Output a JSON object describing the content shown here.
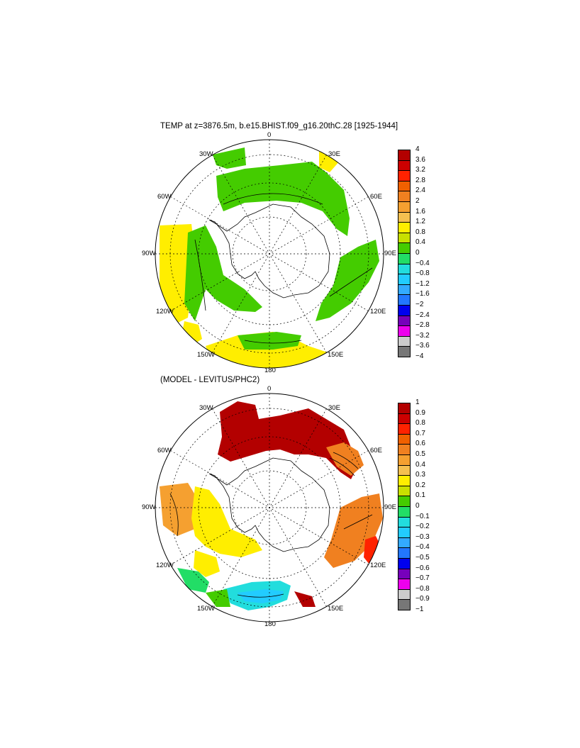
{
  "panel1": {
    "title": "TEMP at z=3876.5m, b.e15.BHIST.f09_g16.20thC.28 [1925-1944]",
    "lon_labels": {
      "top": "0",
      "tr": "30E",
      "rt": "60E",
      "right": "90E",
      "rb": "120E",
      "br": "150E",
      "bottom": "180",
      "bl": "150W",
      "lb": "120W",
      "left": "90W",
      "lt": "60W",
      "tl": "30W"
    },
    "colorbar": {
      "labels": [
        "4",
        "3.6",
        "3.2",
        "2.8",
        "2.4",
        "2",
        "1.6",
        "1.2",
        "0.8",
        "0.4",
        "0",
        "−0.4",
        "−0.8",
        "−1.2",
        "−1.6",
        "−2",
        "−2.4",
        "−2.8",
        "−3.2",
        "−3.6",
        "−4"
      ],
      "colors": [
        "#b30000",
        "#cc0000",
        "#ff2200",
        "#f06000",
        "#f08020",
        "#f5a030",
        "#f5c050",
        "#ffee00",
        "#c8e000",
        "#44cc00",
        "#22dd66",
        "#22dddd",
        "#22ccff",
        "#33aaff",
        "#2277ff",
        "#0000ee",
        "#7700bb",
        "#ee00ee",
        "#cccccc",
        "#777777"
      ]
    }
  },
  "panel2": {
    "title": "(MODEL - LEVITUS/PHC2)",
    "lon_labels": {
      "top": "0",
      "tr": "30E",
      "rt": "60E",
      "right": "90E",
      "rb": "120E",
      "br": "150E",
      "bottom": "180",
      "bl": "150W",
      "lb": "120W",
      "left": "90W",
      "lt": "60W",
      "tl": "30W"
    },
    "colorbar": {
      "labels": [
        "1",
        "0.9",
        "0.8",
        "0.7",
        "0.6",
        "0.5",
        "0.4",
        "0.3",
        "0.2",
        "0.1",
        "0",
        "−0.1",
        "−0.2",
        "−0.3",
        "−0.4",
        "−0.5",
        "−0.6",
        "−0.7",
        "−0.8",
        "−0.9",
        "−1"
      ],
      "colors": [
        "#b30000",
        "#cc0000",
        "#ff2200",
        "#f06000",
        "#f08020",
        "#f5a030",
        "#f5c050",
        "#ffee00",
        "#c8e000",
        "#44cc00",
        "#22dd66",
        "#22dddd",
        "#22ccff",
        "#33aaff",
        "#2277ff",
        "#0000ee",
        "#7700bb",
        "#ee00ee",
        "#cccccc",
        "#777777"
      ]
    }
  }
}
